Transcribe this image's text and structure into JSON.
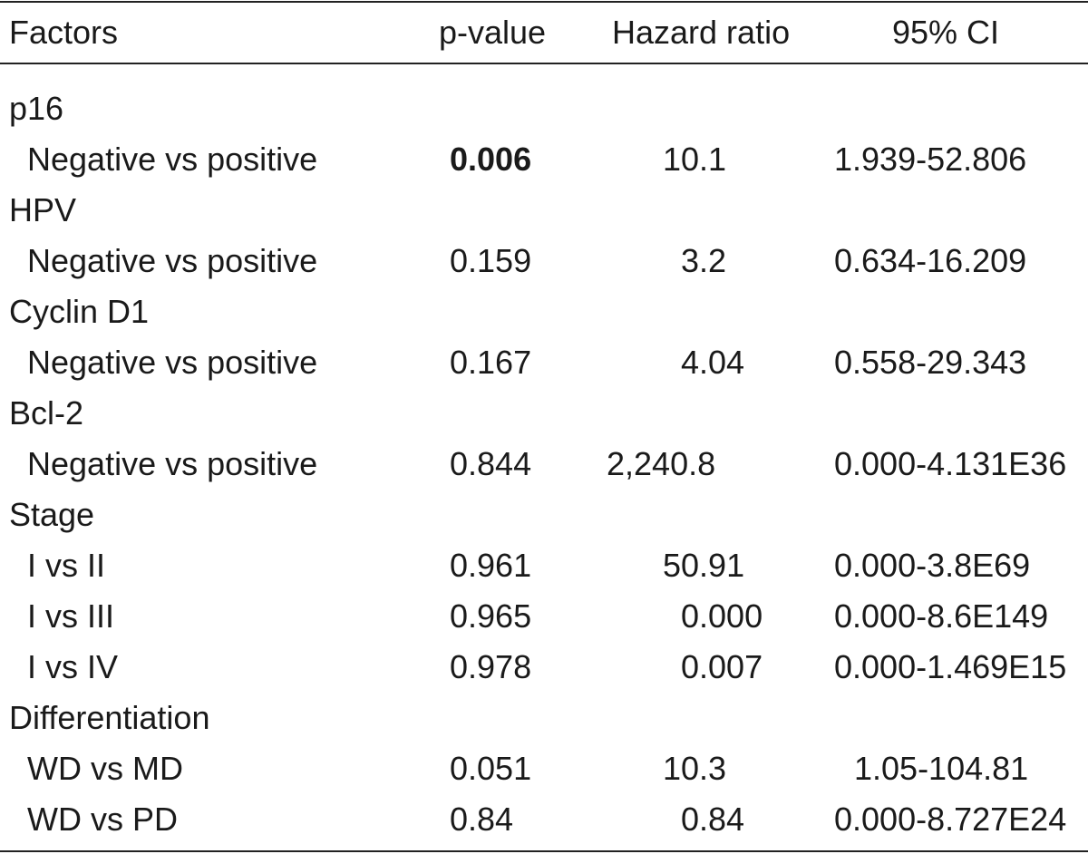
{
  "table": {
    "headers": {
      "factors": "Factors",
      "p_value": "p-value",
      "hazard_ratio": "Hazard ratio",
      "ci": "95% CI"
    },
    "groups": [
      {
        "name": "p16",
        "rows": [
          {
            "label": "Negative vs positive",
            "p": "0.006",
            "p_bold": true,
            "hr": "10.1",
            "ci": "1.939-52.806"
          }
        ]
      },
      {
        "name": "HPV",
        "rows": [
          {
            "label": "Negative vs positive",
            "p": "0.159",
            "hr": "3.2",
            "ci": "0.634-16.209"
          }
        ]
      },
      {
        "name": "Cyclin D1",
        "rows": [
          {
            "label": "Negative vs positive",
            "p": "0.167",
            "hr": "4.04",
            "ci": "0.558-29.343"
          }
        ]
      },
      {
        "name": "Bcl-2",
        "rows": [
          {
            "label": "Negative vs positive",
            "p": "0.844",
            "hr": "2,240.8",
            "ci": "0.000-4.131E36"
          }
        ]
      },
      {
        "name": "Stage",
        "rows": [
          {
            "label": "I vs II",
            "p": "0.961",
            "hr": "50.91",
            "ci": "0.000-3.8E69"
          },
          {
            "label": "I vs III",
            "p": "0.965",
            "hr": "0.000",
            "ci": "0.000-8.6E149"
          },
          {
            "label": "I vs IV",
            "p": "0.978",
            "hr": "0.007",
            "ci": "0.000-1.469E15"
          }
        ]
      },
      {
        "name": "Differentiation",
        "rows": [
          {
            "label": "WD vs MD",
            "p": "0.051",
            "hr": "10.3",
            "ci": "1.05-104.81"
          },
          {
            "label": "WD vs PD",
            "p": "0.84",
            "hr": "0.84",
            "ci": "0.000-8.727E24"
          }
        ]
      }
    ]
  }
}
